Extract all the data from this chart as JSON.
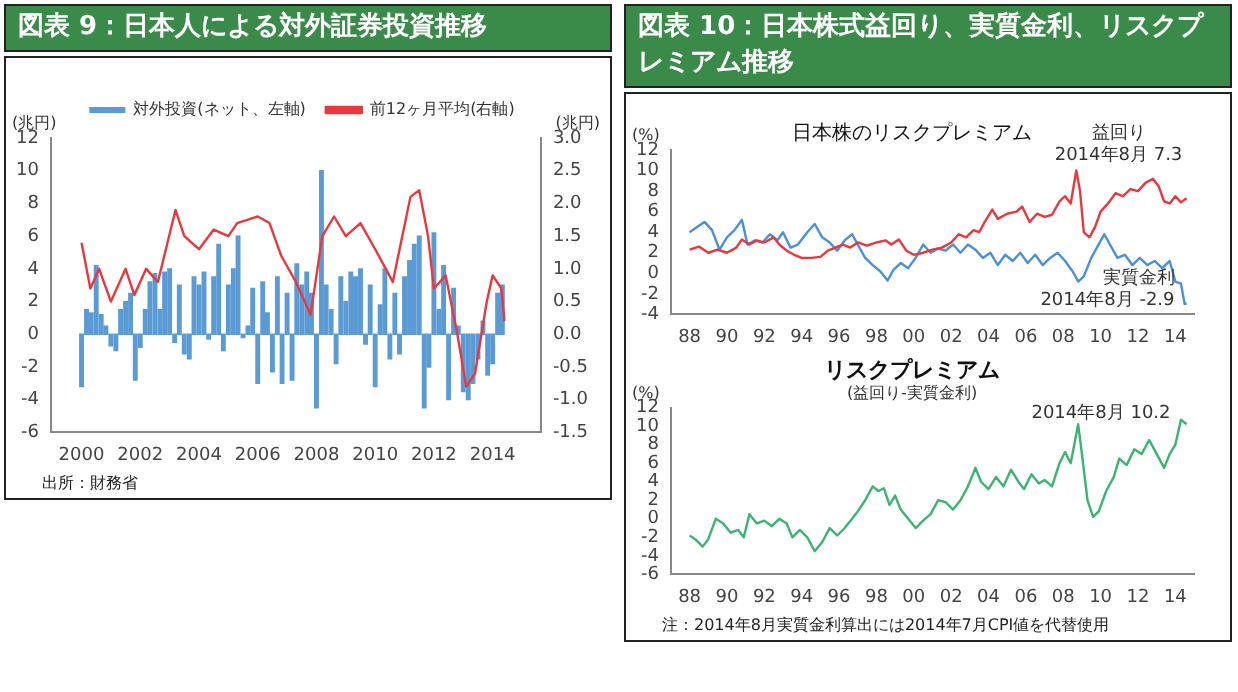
{
  "chart_data": [
    {
      "type": "bar",
      "title": "図表 9：日本人による対外証券投資推移",
      "ylabel": "(兆円)",
      "y2label": "(兆円)",
      "legend": "top",
      "xlim": [
        2000,
        2014.6
      ],
      "xticks": [
        2000,
        2002,
        2004,
        2006,
        2008,
        2010,
        2012,
        2014
      ],
      "ylim": [
        -6,
        12
      ],
      "yticks": [
        -6,
        -4,
        -2,
        0,
        2,
        4,
        6,
        8,
        10,
        12
      ],
      "y2lim": [
        -1.5,
        3
      ],
      "y2ticks": [
        -1.5,
        {
          "value": -1,
          "label": "-1.0"
        },
        -0.5,
        {
          "value": 0,
          "label": "0.0"
        },
        0.5,
        {
          "value": 1,
          "label": "1.0"
        },
        1.5,
        {
          "value": 2,
          "label": "2.0"
        },
        2.5,
        {
          "value": 3,
          "label": "3.0"
        }
      ],
      "series": [
        {
          "name": "対外投資(ネット、左軸)",
          "type": "bar",
          "color": "#5b9bd5",
          "x": [
            2000,
            2000.17,
            2000.33,
            2000.5,
            2000.67,
            2000.83,
            2001,
            2001.17,
            2001.33,
            2001.5,
            2001.67,
            2001.83,
            2002,
            2002.17,
            2002.33,
            2002.5,
            2002.67,
            2002.83,
            2003,
            2003.17,
            2003.33,
            2003.5,
            2003.67,
            2003.83,
            2004,
            2004.17,
            2004.33,
            2004.5,
            2004.67,
            2004.83,
            2005,
            2005.17,
            2005.33,
            2005.5,
            2005.67,
            2005.83,
            2006,
            2006.17,
            2006.33,
            2006.5,
            2006.67,
            2006.83,
            2007,
            2007.17,
            2007.33,
            2007.5,
            2007.67,
            2007.83,
            2008,
            2008.17,
            2008.33,
            2008.5,
            2008.67,
            2008.83,
            2009,
            2009.17,
            2009.33,
            2009.5,
            2009.67,
            2009.83,
            2010,
            2010.17,
            2010.33,
            2010.5,
            2010.67,
            2010.83,
            2011,
            2011.17,
            2011.33,
            2011.5,
            2011.67,
            2011.83,
            2012,
            2012.17,
            2012.33,
            2012.5,
            2012.67,
            2012.83,
            2013,
            2013.17,
            2013.33,
            2013.5,
            2013.67,
            2013.83,
            2014,
            2014.17,
            2014.33
          ],
          "values": [
            -3.2,
            1.5,
            1.3,
            4.2,
            1.2,
            0.5,
            -0.7,
            -1.0,
            1.5,
            2.0,
            2.5,
            -2.8,
            -0.8,
            1.5,
            3.2,
            3.7,
            1.5,
            3.8,
            4.0,
            -0.5,
            3.0,
            -1.2,
            -1.5,
            3.5,
            3.0,
            3.8,
            -0.3,
            3.5,
            5.5,
            -1.0,
            3.0,
            4.0,
            6.0,
            -0.2,
            0.5,
            2.8,
            -3.0,
            3.2,
            1.3,
            -2.3,
            3.5,
            -3.0,
            2.5,
            -2.8,
            4.3,
            3.0,
            3.8,
            2.5,
            -4.5,
            10.0,
            3.0,
            1.5,
            -1.8,
            3.5,
            2.0,
            3.8,
            3.5,
            4.0,
            -0.6,
            3.0,
            -3.2,
            1.8,
            4.0,
            -1.5,
            2.5,
            -1.2,
            3.5,
            4.5,
            5.5,
            6.0,
            -4.5,
            -2.0,
            6.2,
            1.5,
            4.2,
            -4.0,
            2.8,
            0.5,
            -3.5,
            -4.0,
            -3.0,
            -1.5,
            0.8,
            -2.5,
            -1.8,
            2.5,
            3.0
          ]
        },
        {
          "name": "前12ヶ月平均(右軸)",
          "type": "line",
          "axis": "y2",
          "color": "#e8383d",
          "x": [
            2000,
            2000.3,
            2000.6,
            2001,
            2001.5,
            2001.8,
            2002.2,
            2002.6,
            2003.2,
            2003.5,
            2004,
            2004.5,
            2005,
            2005.3,
            2006,
            2006.4,
            2006.8,
            2007.3,
            2007.8,
            2008.2,
            2008.6,
            2009,
            2009.5,
            2010,
            2010.6,
            2011.2,
            2011.5,
            2011.8,
            2012,
            2012.4,
            2012.8,
            2013.1,
            2013.4,
            2013.8,
            2014,
            2014.3,
            2014.4
          ],
          "values": [
            1.4,
            0.7,
            1.0,
            0.5,
            1.0,
            0.6,
            1.0,
            0.8,
            1.9,
            1.5,
            1.3,
            1.6,
            1.5,
            1.7,
            1.8,
            1.7,
            1.2,
            0.8,
            0.3,
            1.5,
            1.8,
            1.5,
            1.7,
            1.3,
            0.8,
            2.1,
            2.2,
            1.5,
            0.7,
            0.9,
            0.0,
            -0.8,
            -0.6,
            0.5,
            0.9,
            0.7,
            0.2
          ]
        }
      ],
      "annotations": [
        "出所：財務省"
      ]
    },
    {
      "type": "line",
      "title": "図表 10：日本株式益回り、実質金利、リスクプレミアム推移",
      "subtitle": "日本株のリスクプレミアム",
      "ylabel": "(%)",
      "xlim": [
        1987,
        2015
      ],
      "xticks": [
        {
          "value": 1988,
          "label": "88"
        },
        {
          "value": 1990,
          "label": "90"
        },
        {
          "value": 1992,
          "label": "92"
        },
        {
          "value": 1994,
          "label": "94"
        },
        {
          "value": 1996,
          "label": "96"
        },
        {
          "value": 1998,
          "label": "98"
        },
        {
          "value": 2000,
          "label": "00"
        },
        {
          "value": 2002,
          "label": "02"
        },
        {
          "value": 2004,
          "label": "04"
        },
        {
          "value": 2006,
          "label": "06"
        },
        {
          "value": 2008,
          "label": "08"
        },
        {
          "value": 2010,
          "label": "10"
        },
        {
          "value": 2012,
          "label": "12"
        },
        {
          "value": 2014,
          "label": "14"
        }
      ],
      "ylim": [
        -4,
        12
      ],
      "yticks": [
        -4,
        -2,
        0,
        2,
        4,
        6,
        8,
        10,
        12
      ],
      "series": [
        {
          "name": "益回り",
          "color": "#e8383d",
          "x": [
            1988,
            1988.5,
            1989,
            1989.5,
            1990,
            1990.5,
            1990.8,
            1991.2,
            1991.6,
            1992,
            1992.5,
            1992.8,
            1993.2,
            1993.6,
            1994,
            1994.5,
            1995,
            1995.4,
            1995.8,
            1996.2,
            1996.6,
            1997,
            1997.5,
            1998,
            1998.5,
            1998.8,
            1999.2,
            1999.6,
            2000,
            2000.5,
            2001,
            2001.5,
            2002,
            2002.4,
            2002.8,
            2003.2,
            2003.5,
            2003.8,
            2004.2,
            2004.5,
            2005,
            2005.5,
            2005.8,
            2006.2,
            2006.6,
            2007,
            2007.4,
            2007.8,
            2008.1,
            2008.4,
            2008.7,
            2008.9,
            2009.1,
            2009.4,
            2009.7,
            2010,
            2010.4,
            2010.8,
            2011.2,
            2011.6,
            2012,
            2012.4,
            2012.8,
            2013.1,
            2013.4,
            2013.7,
            2014,
            2014.3,
            2014.6
          ],
          "values": [
            2.3,
            2.6,
            2.0,
            2.3,
            2.0,
            2.5,
            3.3,
            2.8,
            3.2,
            3.0,
            3.5,
            2.8,
            2.2,
            1.8,
            1.5,
            1.5,
            1.6,
            2.2,
            2.5,
            2.8,
            2.5,
            3.0,
            2.7,
            3.0,
            3.2,
            2.8,
            3.3,
            2.2,
            1.8,
            2.0,
            2.3,
            2.5,
            3.0,
            3.8,
            3.5,
            4.2,
            4.0,
            5.0,
            6.2,
            5.3,
            5.8,
            6.0,
            6.5,
            5.0,
            5.8,
            5.5,
            5.7,
            7.0,
            7.5,
            6.8,
            10.0,
            8.0,
            4.0,
            3.5,
            4.5,
            6.0,
            6.8,
            7.8,
            7.5,
            8.2,
            8.0,
            8.8,
            9.2,
            8.5,
            7.0,
            6.8,
            7.5,
            6.9,
            7.3
          ]
        },
        {
          "name": "実質金利",
          "color": "#4a90d9",
          "x": [
            1988,
            1988.4,
            1988.8,
            1989.2,
            1989.6,
            1990,
            1990.4,
            1990.8,
            1991.1,
            1991.5,
            1991.9,
            1992.3,
            1992.7,
            1993,
            1993.4,
            1993.8,
            1994.3,
            1994.7,
            1995.1,
            1995.5,
            1995.9,
            1996.3,
            1996.7,
            1997,
            1997.4,
            1997.8,
            1998.2,
            1998.6,
            1998.9,
            1999.3,
            1999.7,
            2000.1,
            2000.5,
            2000.9,
            2001.3,
            2001.7,
            2002.1,
            2002.5,
            2002.9,
            2003.3,
            2003.7,
            2004.1,
            2004.5,
            2004.9,
            2005.3,
            2005.7,
            2006.1,
            2006.5,
            2006.9,
            2007.3,
            2007.7,
            2008.1,
            2008.5,
            2008.8,
            2009.1,
            2009.5,
            2009.8,
            2010.2,
            2010.5,
            2010.9,
            2011.3,
            2011.7,
            2012.1,
            2012.5,
            2012.9,
            2013.3,
            2013.7,
            2014,
            2014.3,
            2014.5,
            2014.6
          ],
          "values": [
            4.0,
            4.5,
            5.0,
            4.2,
            2.3,
            3.5,
            4.2,
            5.2,
            2.8,
            3.2,
            3.0,
            3.8,
            3.2,
            4.0,
            2.5,
            2.8,
            4.0,
            4.8,
            3.5,
            3.0,
            2.2,
            3.2,
            3.8,
            2.8,
            1.5,
            0.8,
            0.2,
            -0.7,
            0.3,
            1.0,
            0.5,
            1.5,
            2.8,
            2.0,
            2.4,
            2.2,
            2.8,
            2.0,
            2.8,
            2.3,
            1.5,
            2.0,
            0.8,
            1.8,
            1.2,
            2.0,
            1.0,
            1.8,
            0.8,
            1.5,
            2.0,
            1.2,
            0.2,
            -0.8,
            -0.3,
            1.5,
            2.5,
            3.8,
            2.8,
            1.5,
            1.8,
            0.8,
            1.5,
            0.8,
            1.2,
            0.5,
            1.2,
            -0.8,
            -1.0,
            -3.0,
            -2.9
          ]
        }
      ],
      "annotations": [
        "2014年8月 7.3",
        "2014年8月 -2.9"
      ]
    },
    {
      "type": "line",
      "title": "リスクプレミアム",
      "subtitle": "(益回り-実質金利)",
      "ylabel": "(%)",
      "xlim": [
        1987,
        2015
      ],
      "xticks": [
        {
          "value": 1988,
          "label": "88"
        },
        {
          "value": 1990,
          "label": "90"
        },
        {
          "value": 1992,
          "label": "92"
        },
        {
          "value": 1994,
          "label": "94"
        },
        {
          "value": 1996,
          "label": "96"
        },
        {
          "value": 1998,
          "label": "98"
        },
        {
          "value": 2000,
          "label": "00"
        },
        {
          "value": 2002,
          "label": "02"
        },
        {
          "value": 2004,
          "label": "04"
        },
        {
          "value": 2006,
          "label": "06"
        },
        {
          "value": 2008,
          "label": "08"
        },
        {
          "value": 2010,
          "label": "10"
        },
        {
          "value": 2012,
          "label": "12"
        },
        {
          "value": 2014,
          "label": "14"
        }
      ],
      "ylim": [
        -6,
        12
      ],
      "yticks": [
        -6,
        -4,
        -2,
        0,
        2,
        4,
        6,
        8,
        10,
        12
      ],
      "series": [
        {
          "color": "#3cb371",
          "x": [
            1988,
            1988.3,
            1988.7,
            1989,
            1989.4,
            1989.8,
            1990.2,
            1990.6,
            1990.9,
            1991.2,
            1991.6,
            1992,
            1992.4,
            1992.8,
            1993.2,
            1993.5,
            1993.9,
            1994.3,
            1994.7,
            1995.1,
            1995.5,
            1995.9,
            1996.3,
            1996.7,
            1997,
            1997.4,
            1997.8,
            1998.1,
            1998.4,
            1998.7,
            1999,
            1999.3,
            1999.7,
            2000.1,
            2000.5,
            2000.9,
            2001.3,
            2001.7,
            2002.1,
            2002.5,
            2002.9,
            2003.3,
            2003.6,
            2004,
            2004.4,
            2004.8,
            2005.2,
            2005.6,
            2005.9,
            2006.3,
            2006.7,
            2007,
            2007.4,
            2007.8,
            2008.1,
            2008.4,
            2008.8,
            2009,
            2009.3,
            2009.6,
            2009.9,
            2010.3,
            2010.7,
            2011,
            2011.4,
            2011.8,
            2012.2,
            2012.6,
            2013,
            2013.4,
            2013.7,
            2014,
            2014.3,
            2014.6
          ],
          "values": [
            -1.8,
            -2.2,
            -3.0,
            -2.2,
            0.0,
            -0.5,
            -1.5,
            -1.2,
            -2.0,
            0.5,
            -0.5,
            -0.2,
            -0.8,
            0.0,
            -0.5,
            -2.0,
            -1.2,
            -2.0,
            -3.5,
            -2.5,
            -1.0,
            -1.8,
            -1.0,
            0.0,
            0.8,
            2.0,
            3.5,
            3.0,
            3.3,
            1.5,
            2.5,
            1.0,
            0.0,
            -1.0,
            -0.2,
            0.5,
            2.0,
            1.8,
            1.0,
            2.0,
            3.5,
            5.5,
            4.0,
            3.2,
            4.5,
            3.5,
            5.3,
            4.0,
            3.2,
            4.8,
            3.8,
            4.2,
            3.5,
            6.0,
            7.2,
            6.0,
            10.2,
            7.0,
            2.0,
            0.2,
            0.8,
            3.0,
            4.5,
            6.5,
            5.8,
            7.5,
            7.0,
            8.5,
            7.0,
            5.5,
            7.0,
            8.0,
            10.7,
            10.2
          ]
        }
      ],
      "annotations": [
        "2014年8月 10.2",
        "注：2014年8月実質金利算出には2014年7月CPI値を代替使用"
      ]
    }
  ]
}
